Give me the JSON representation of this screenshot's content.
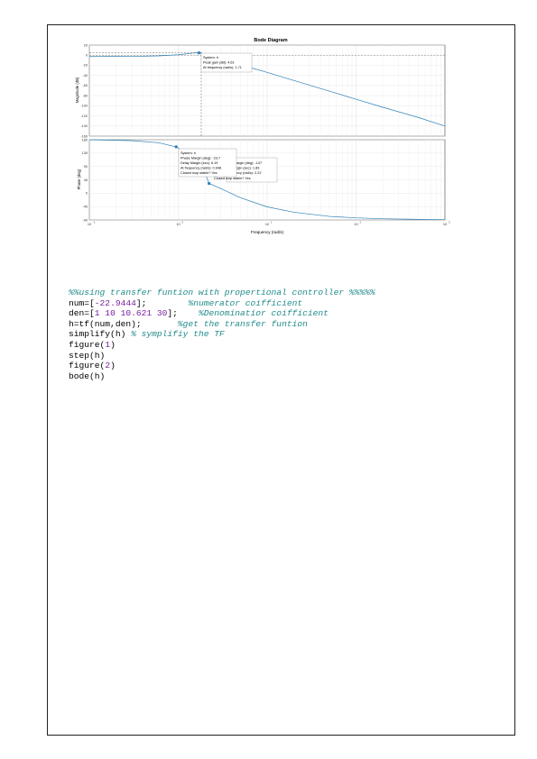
{
  "figure": {
    "title": "Bode Diagram",
    "mag_ylabel": "Magnitude (dB)",
    "phase_ylabel": "Phase (deg)",
    "xlabel": "Frequency  (rad/s)",
    "x_ticks": [
      {
        "value": 0.1,
        "label": "10"
      },
      {
        "value": 1,
        "label": "10"
      },
      {
        "value": 10,
        "label": "10"
      },
      {
        "value": 100,
        "label": "10"
      },
      {
        "value": 1000,
        "label": "10"
      }
    ],
    "x_tick_exponents": [
      "-1",
      "0",
      "1",
      "2",
      "3"
    ],
    "mag_ticks": [
      "20",
      "0",
      "-20",
      "-40",
      "-60",
      "-80",
      "-100",
      "-120",
      "-140",
      "-160"
    ],
    "phase_ticks": [
      "180",
      "135",
      "90",
      "45",
      "0",
      "-45",
      "-90"
    ],
    "mag_tip": {
      "line1": "System: h",
      "line2": "Peak gain (dB): 4.61",
      "line3": "At frequency (rad/s): 1.71"
    },
    "phase_tip1": {
      "line1": "System: h",
      "line2": "Phase Margin (deg): -23.7",
      "line3": "Delay Margin (sec): 6.19",
      "line4": "At frequency (rad/s): 0.948",
      "line5": "Closed loop stable? Yes"
    },
    "phase_tip2": {
      "line1": "argin (deg): -147",
      "line2": "rgin (sec): 1.89",
      "line3": "ncy (rad/s): 2.22",
      "line4": "Closed loop stable? Yes"
    }
  },
  "chart_data": {
    "type": "line",
    "title": "Bode Diagram",
    "xlabel": "Frequency  (rad/s)",
    "xscale": "log",
    "xlim": [
      0.1,
      1000
    ],
    "grid": true,
    "panels": [
      {
        "name": "magnitude",
        "ylabel": "Magnitude (dB)",
        "ylim": [
          -160,
          20
        ],
        "x": [
          0.1,
          0.3,
          0.6,
          1.0,
          1.5,
          1.71,
          2.2,
          3,
          5,
          10,
          20,
          50,
          100,
          200,
          500,
          1000
        ],
        "y": [
          -2.7,
          -2.4,
          -1.4,
          0.8,
          4.3,
          4.61,
          1.5,
          -7,
          -19,
          -34,
          -50,
          -71,
          -87,
          -103,
          -123,
          -140
        ]
      },
      {
        "name": "phase",
        "ylabel": "Phase (deg)",
        "ylim": [
          -90,
          180
        ],
        "x": [
          0.1,
          0.3,
          0.6,
          0.948,
          1.5,
          2.0,
          2.22,
          3,
          5,
          10,
          20,
          50,
          100,
          200,
          500,
          1000
        ],
        "y": [
          180,
          177,
          170,
          156,
          122,
          68,
          33,
          16,
          -15,
          -46,
          -64,
          -78,
          -83,
          -86,
          -88,
          -89
        ]
      }
    ],
    "annotations": [
      "Peak gain (dB): 4.61",
      "Phase Margin (deg): -23.7",
      "Delay Margin (sec): 6.19"
    ]
  },
  "code": {
    "l1": "%%using transfer funtion with propertional controller %%%%%",
    "l2a": "num=[",
    "l2b": "-22.9444",
    "l2c": "];",
    "l2d": "%numerator coifficient",
    "l3a": "den=[",
    "l3b": "1 10 10.621 30",
    "l3c": "];",
    "l3d": "%Denominatior coifficient",
    "l4a": "h=tf(num,den);",
    "l4b": "%get the transfer funtion",
    "l5a": "simplify(h)",
    "l5b": "% symplifiy the TF",
    "l6a": "figure(",
    "l6b": "1",
    "l6c": ")",
    "l7": "step(h)",
    "l8a": "figure(",
    "l8b": "2",
    "l8c": ")",
    "l9": "bode(h)"
  }
}
